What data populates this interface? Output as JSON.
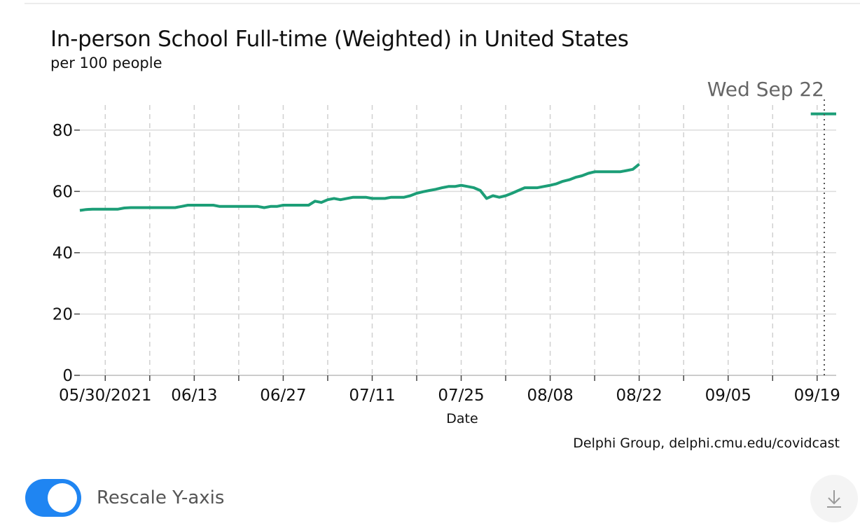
{
  "chart_data": {
    "type": "line",
    "title": "In-person School Full-time (Weighted) in United States",
    "subtitle": "per 100 people",
    "xlabel": "Date",
    "ylabel": "",
    "source": "Delphi Group, delphi.cmu.edu/covidcast",
    "hover_date_label": "Wed Sep 22",
    "hover_date": "2021-09-22",
    "hover_value": 85.3,
    "xlim": [
      "2021-05-26",
      "2021-09-22"
    ],
    "ylim": [
      0,
      90
    ],
    "yticks": [
      0,
      20,
      40,
      60,
      80
    ],
    "xticks": [
      {
        "date": "2021-05-30",
        "label": "05/30/2021"
      },
      {
        "date": "2021-06-13",
        "label": "06/13"
      },
      {
        "date": "2021-06-27",
        "label": "06/27"
      },
      {
        "date": "2021-07-11",
        "label": "07/11"
      },
      {
        "date": "2021-07-25",
        "label": "07/25"
      },
      {
        "date": "2021-08-08",
        "label": "08/08"
      },
      {
        "date": "2021-08-22",
        "label": "08/22"
      },
      {
        "date": "2021-09-05",
        "label": "09/05"
      },
      {
        "date": "2021-09-19",
        "label": "09/19"
      }
    ],
    "minor_xticks": [
      "2021-06-06",
      "2021-06-20",
      "2021-07-04",
      "2021-07-18",
      "2021-08-01",
      "2021-08-15",
      "2021-08-29",
      "2021-09-12"
    ],
    "grid": true,
    "color": "#1c9e77",
    "series": [
      {
        "name": "",
        "points": [
          [
            "2021-05-26",
            53.8
          ],
          [
            "2021-05-27",
            54.1
          ],
          [
            "2021-05-28",
            54.2
          ],
          [
            "2021-05-29",
            54.2
          ],
          [
            "2021-05-30",
            54.2
          ],
          [
            "2021-05-31",
            54.2
          ],
          [
            "2021-06-01",
            54.2
          ],
          [
            "2021-06-02",
            54.6
          ],
          [
            "2021-06-03",
            54.7
          ],
          [
            "2021-06-04",
            54.7
          ],
          [
            "2021-06-05",
            54.7
          ],
          [
            "2021-06-06",
            54.7
          ],
          [
            "2021-06-07",
            54.7
          ],
          [
            "2021-06-08",
            54.7
          ],
          [
            "2021-06-09",
            54.7
          ],
          [
            "2021-06-10",
            54.7
          ],
          [
            "2021-06-11",
            55.1
          ],
          [
            "2021-06-12",
            55.5
          ],
          [
            "2021-06-13",
            55.5
          ],
          [
            "2021-06-14",
            55.5
          ],
          [
            "2021-06-15",
            55.5
          ],
          [
            "2021-06-16",
            55.5
          ],
          [
            "2021-06-17",
            55.1
          ],
          [
            "2021-06-18",
            55.1
          ],
          [
            "2021-06-19",
            55.1
          ],
          [
            "2021-06-20",
            55.1
          ],
          [
            "2021-06-21",
            55.1
          ],
          [
            "2021-06-22",
            55.1
          ],
          [
            "2021-06-23",
            55.1
          ],
          [
            "2021-06-24",
            54.7
          ],
          [
            "2021-06-25",
            55.1
          ],
          [
            "2021-06-26",
            55.1
          ],
          [
            "2021-06-27",
            55.5
          ],
          [
            "2021-06-28",
            55.5
          ],
          [
            "2021-06-29",
            55.5
          ],
          [
            "2021-06-30",
            55.5
          ],
          [
            "2021-07-01",
            55.5
          ],
          [
            "2021-07-02",
            56.8
          ],
          [
            "2021-07-03",
            56.4
          ],
          [
            "2021-07-04",
            57.3
          ],
          [
            "2021-07-05",
            57.7
          ],
          [
            "2021-07-06",
            57.3
          ],
          [
            "2021-07-07",
            57.7
          ],
          [
            "2021-07-08",
            58.1
          ],
          [
            "2021-07-09",
            58.1
          ],
          [
            "2021-07-10",
            58.1
          ],
          [
            "2021-07-11",
            57.7
          ],
          [
            "2021-07-12",
            57.7
          ],
          [
            "2021-07-13",
            57.7
          ],
          [
            "2021-07-14",
            58.1
          ],
          [
            "2021-07-15",
            58.1
          ],
          [
            "2021-07-16",
            58.1
          ],
          [
            "2021-07-17",
            58.6
          ],
          [
            "2021-07-18",
            59.4
          ],
          [
            "2021-07-19",
            59.9
          ],
          [
            "2021-07-20",
            60.3
          ],
          [
            "2021-07-21",
            60.7
          ],
          [
            "2021-07-22",
            61.2
          ],
          [
            "2021-07-23",
            61.6
          ],
          [
            "2021-07-24",
            61.6
          ],
          [
            "2021-07-25",
            62.0
          ],
          [
            "2021-07-26",
            61.6
          ],
          [
            "2021-07-27",
            61.2
          ],
          [
            "2021-07-28",
            60.3
          ],
          [
            "2021-07-29",
            57.7
          ],
          [
            "2021-07-30",
            58.6
          ],
          [
            "2021-07-31",
            58.1
          ],
          [
            "2021-08-01",
            58.6
          ],
          [
            "2021-08-02",
            59.4
          ],
          [
            "2021-08-03",
            60.3
          ],
          [
            "2021-08-04",
            61.2
          ],
          [
            "2021-08-05",
            61.2
          ],
          [
            "2021-08-06",
            61.2
          ],
          [
            "2021-08-07",
            61.6
          ],
          [
            "2021-08-08",
            62.0
          ],
          [
            "2021-08-09",
            62.5
          ],
          [
            "2021-08-10",
            63.3
          ],
          [
            "2021-08-11",
            63.8
          ],
          [
            "2021-08-12",
            64.6
          ],
          [
            "2021-08-13",
            65.1
          ],
          [
            "2021-08-14",
            65.9
          ],
          [
            "2021-08-15",
            66.4
          ],
          [
            "2021-08-16",
            66.4
          ],
          [
            "2021-08-17",
            66.4
          ],
          [
            "2021-08-18",
            66.4
          ],
          [
            "2021-08-19",
            66.4
          ],
          [
            "2021-08-20",
            66.8
          ],
          [
            "2021-08-21",
            67.2
          ],
          [
            "2021-08-22",
            68.9
          ]
        ]
      },
      {
        "name": "",
        "points": [
          [
            "2021-09-18",
            85.3
          ],
          [
            "2021-09-22",
            85.3
          ]
        ]
      }
    ]
  },
  "controls": {
    "rescale_label": "Rescale Y-axis",
    "rescale_on": true,
    "download_icon": "download-icon"
  }
}
